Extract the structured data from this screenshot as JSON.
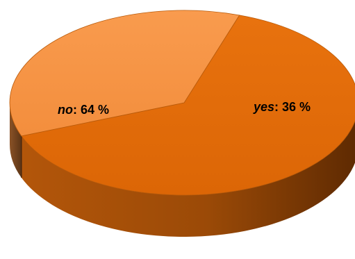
{
  "chart_data": {
    "type": "pie",
    "style": "3d",
    "legend": "none",
    "slices": [
      {
        "label": "no",
        "value": 64,
        "display": ": 64 %",
        "color": "#E36C0A",
        "side_color": "#A24C07"
      },
      {
        "label": "yes",
        "value": 36,
        "display": ": 36 %",
        "color": "#F79646",
        "side_color": "#7A4A22"
      }
    ]
  }
}
